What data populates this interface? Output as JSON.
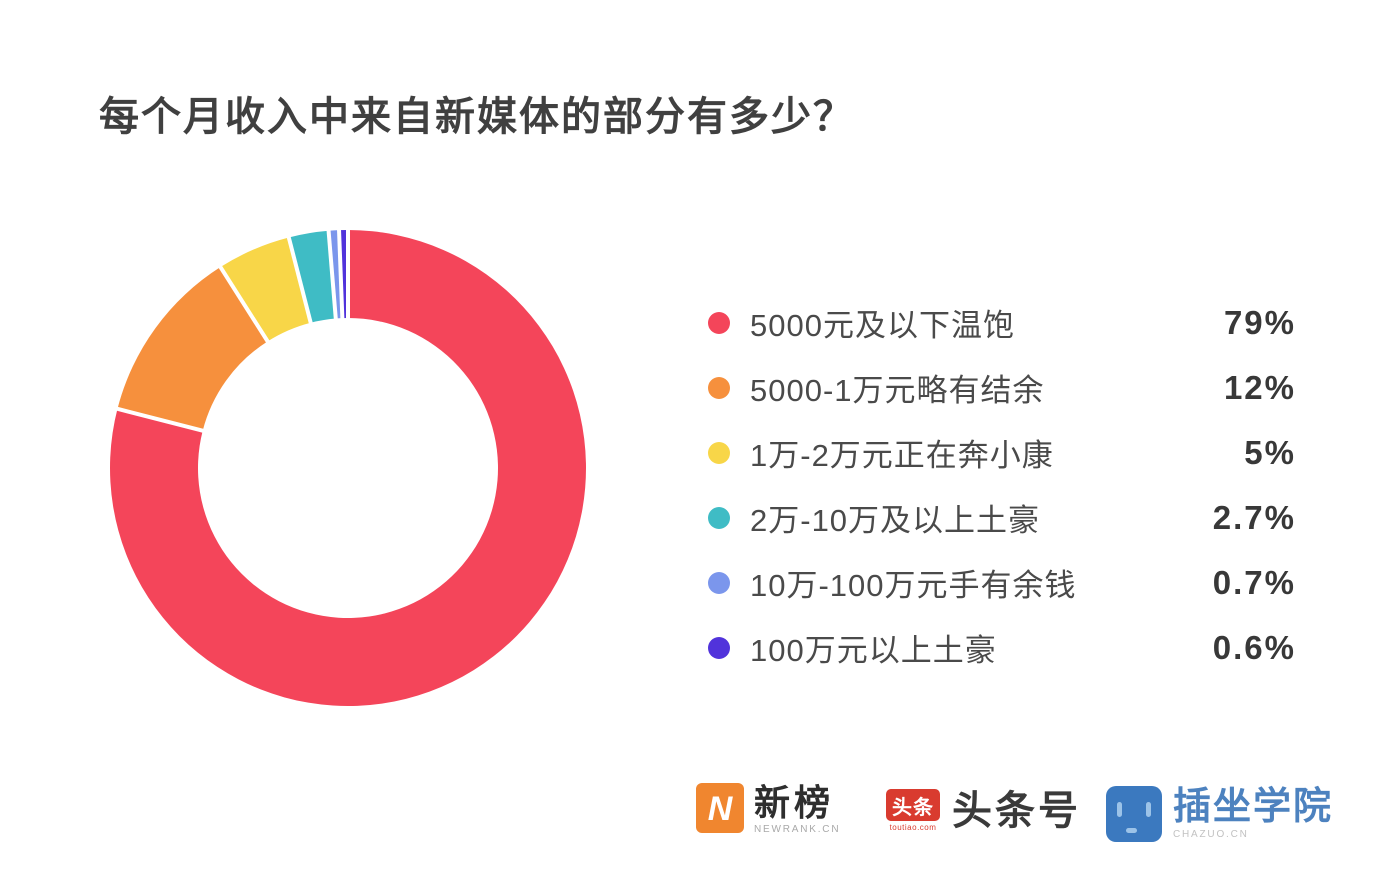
{
  "title": "每个月收入中来自新媒体的部分有多少？",
  "chart_data": {
    "type": "pie",
    "subtype": "donut",
    "title": "每个月收入中来自新媒体的部分有多少？",
    "start_angle": "12-oclock",
    "direction": "clockwise",
    "inner_radius_ratio": 0.63,
    "categories": [
      "5000元及以下温饱",
      "5000-1万元略有结余",
      "1万-2万元正在奔小康",
      "2万-10万及以上土豪",
      "10万-100万元手有余钱",
      "100万元以上土豪"
    ],
    "values": [
      79,
      12,
      5,
      2.7,
      0.7,
      0.6
    ],
    "value_labels": [
      "79%",
      "12%",
      "5%",
      "2.7%",
      "0.7%",
      "0.6%"
    ],
    "colors": [
      "#F4455A",
      "#F6903D",
      "#F8D648",
      "#3FBCC5",
      "#7B96EC",
      "#5133DB"
    ],
    "gap_color": "#FFFFFF",
    "legend_position": "right"
  },
  "legend": {
    "items": [
      {
        "label": "5000元及以下温饱",
        "value": "79%",
        "color": "#F4455A"
      },
      {
        "label": "5000-1万元略有结余",
        "value": "12%",
        "color": "#F6903D"
      },
      {
        "label": "1万-2万元正在奔小康",
        "value": "5%",
        "color": "#F8D648"
      },
      {
        "label": "2万-10万及以上土豪",
        "value": "2.7%",
        "color": "#3FBCC5"
      },
      {
        "label": "10万-100万元手有余钱",
        "value": "0.7%",
        "color": "#7B96EC"
      },
      {
        "label": "100万元以上土豪",
        "value": "0.6%",
        "color": "#5133DB"
      }
    ]
  },
  "footer": {
    "newrank": {
      "name": "新榜",
      "sub": "NEWRANK.CN",
      "icon": "newrank-lightning-n-icon",
      "brand_color": "#F0862F"
    },
    "toutiao": {
      "icon_text": "头条",
      "icon_sub": "toutiao.com",
      "name": "头条号",
      "icon": "toutiao-badge-icon",
      "brand_color": "#D93B2F"
    },
    "chazuo": {
      "name": "插坐学院",
      "sub": "CHAZUO.CN",
      "icon": "chazuo-robot-face-icon",
      "brand_color": "#3B79BF",
      "text_color": "#4D82BF"
    }
  },
  "colors": {
    "background": "#FFFFFF",
    "title_text": "#404040",
    "label_text": "#4A4A4A",
    "value_text": "#383838"
  }
}
